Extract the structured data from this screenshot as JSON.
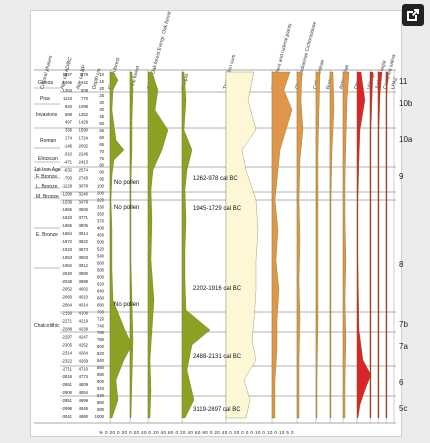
{
  "headers": {
    "cultural": "Cultural phases",
    "age_ad": "Age cal AD/BC",
    "age_bp": "Age cal BP",
    "depth": "Depth cm",
    "riparian": "Riparian forest",
    "pine": "Pine forest",
    "decid": "Decid. Oak forest Evergr. Oak forest",
    "maquis": "Maquis",
    "tree_sum": "Tree pollen sum",
    "nitro": "Nitrophilous and ruderal plants",
    "cheno": "Chenopodiaceae Cichorioideae",
    "cichor": "Cichorioideae",
    "rumex": "Rumex",
    "asteraceae": "Asteraceae",
    "olea": "Olea sp.",
    "vitis": "Vitis sp.",
    "juglans": "Juglans regia",
    "castanea": "Castanea sativa",
    "lpaz": "LPAZ"
  },
  "cultural_phases": [
    "Genoa",
    "Pisa",
    "Invasions",
    "Roman",
    "Etruscan",
    "1st Iron Age",
    "F. Bronze",
    "L. Bronze",
    "M. Bronze",
    "E. Bronze",
    "Chalcolithic"
  ],
  "age_ad": [
    "1627",
    "1466",
    "1304",
    "1143",
    "820",
    "659",
    "497",
    "336",
    "174",
    "-146",
    "-310",
    "-471",
    "-632",
    "-793",
    "-1128",
    "-1290",
    "-1536",
    "-1655",
    "-1823",
    "-1855",
    "-1864",
    "-1872",
    "-1923",
    "-1953",
    "-1962",
    "-2040",
    "-2048",
    "-2052",
    "-2060",
    "-2064",
    "-2156",
    "-2271",
    "-2288",
    "-2297",
    "-2305",
    "-2314",
    "-2322",
    "-2711",
    "-2816",
    "-2861",
    "-2906",
    "-2951",
    "-2996",
    "-3041"
  ],
  "age_bp": [
    "278",
    "442",
    "608",
    "770",
    "1098",
    "1252",
    "1429",
    "1590",
    "1724",
    "2092",
    "2246",
    "2413",
    "2574",
    "2743",
    "3078",
    "3240",
    "3478",
    "3505",
    "3771",
    "3805",
    "3814",
    "3822",
    "3873",
    "3903",
    "3912",
    "3990",
    "3998",
    "4002",
    "4010",
    "4014",
    "4106",
    "4219",
    "4238",
    "4247",
    "4252",
    "4264",
    "4269",
    "4710",
    "4774",
    "4809",
    "4854",
    "4899",
    "4945",
    "4990"
  ],
  "depth": [
    "10",
    "15",
    "20",
    "25",
    "30",
    "40",
    "45",
    "50",
    "55",
    "60",
    "65",
    "70",
    "75",
    "80",
    "90",
    "95",
    "100",
    "200",
    "320",
    "330",
    "350",
    "370",
    "400",
    "450",
    "500",
    "520",
    "540",
    "560",
    "580",
    "600",
    "620",
    "640",
    "660",
    "680",
    "700",
    "720",
    "740",
    "760",
    "780",
    "800",
    "820",
    "840",
    "860",
    "880",
    "900",
    "920",
    "940",
    "960",
    "980",
    "1000"
  ],
  "no_pollen": [
    "No pollen",
    "No pollen",
    "No pollen"
  ],
  "dates": [
    "1262-978 cal BC",
    "1945-1729 cal BC",
    "2202-1916 cal BC",
    "2488-2131 cal BC",
    "3119-2897 cal BC"
  ],
  "zones": [
    "11",
    "10b",
    "10a",
    "9",
    "8",
    "7b",
    "7a",
    "6",
    "5c"
  ],
  "axis_ticks": "% 0 20 0 20 0 20 40 0 20 40 60 0 20 40 60 80 0 20 40 0 20 0 0 0 10 0 10 0 10 5 0",
  "colors": {
    "olive": "#8da024",
    "cream": "#fdf7d6",
    "orange": "#e0964a",
    "red": "#d9262a"
  }
}
